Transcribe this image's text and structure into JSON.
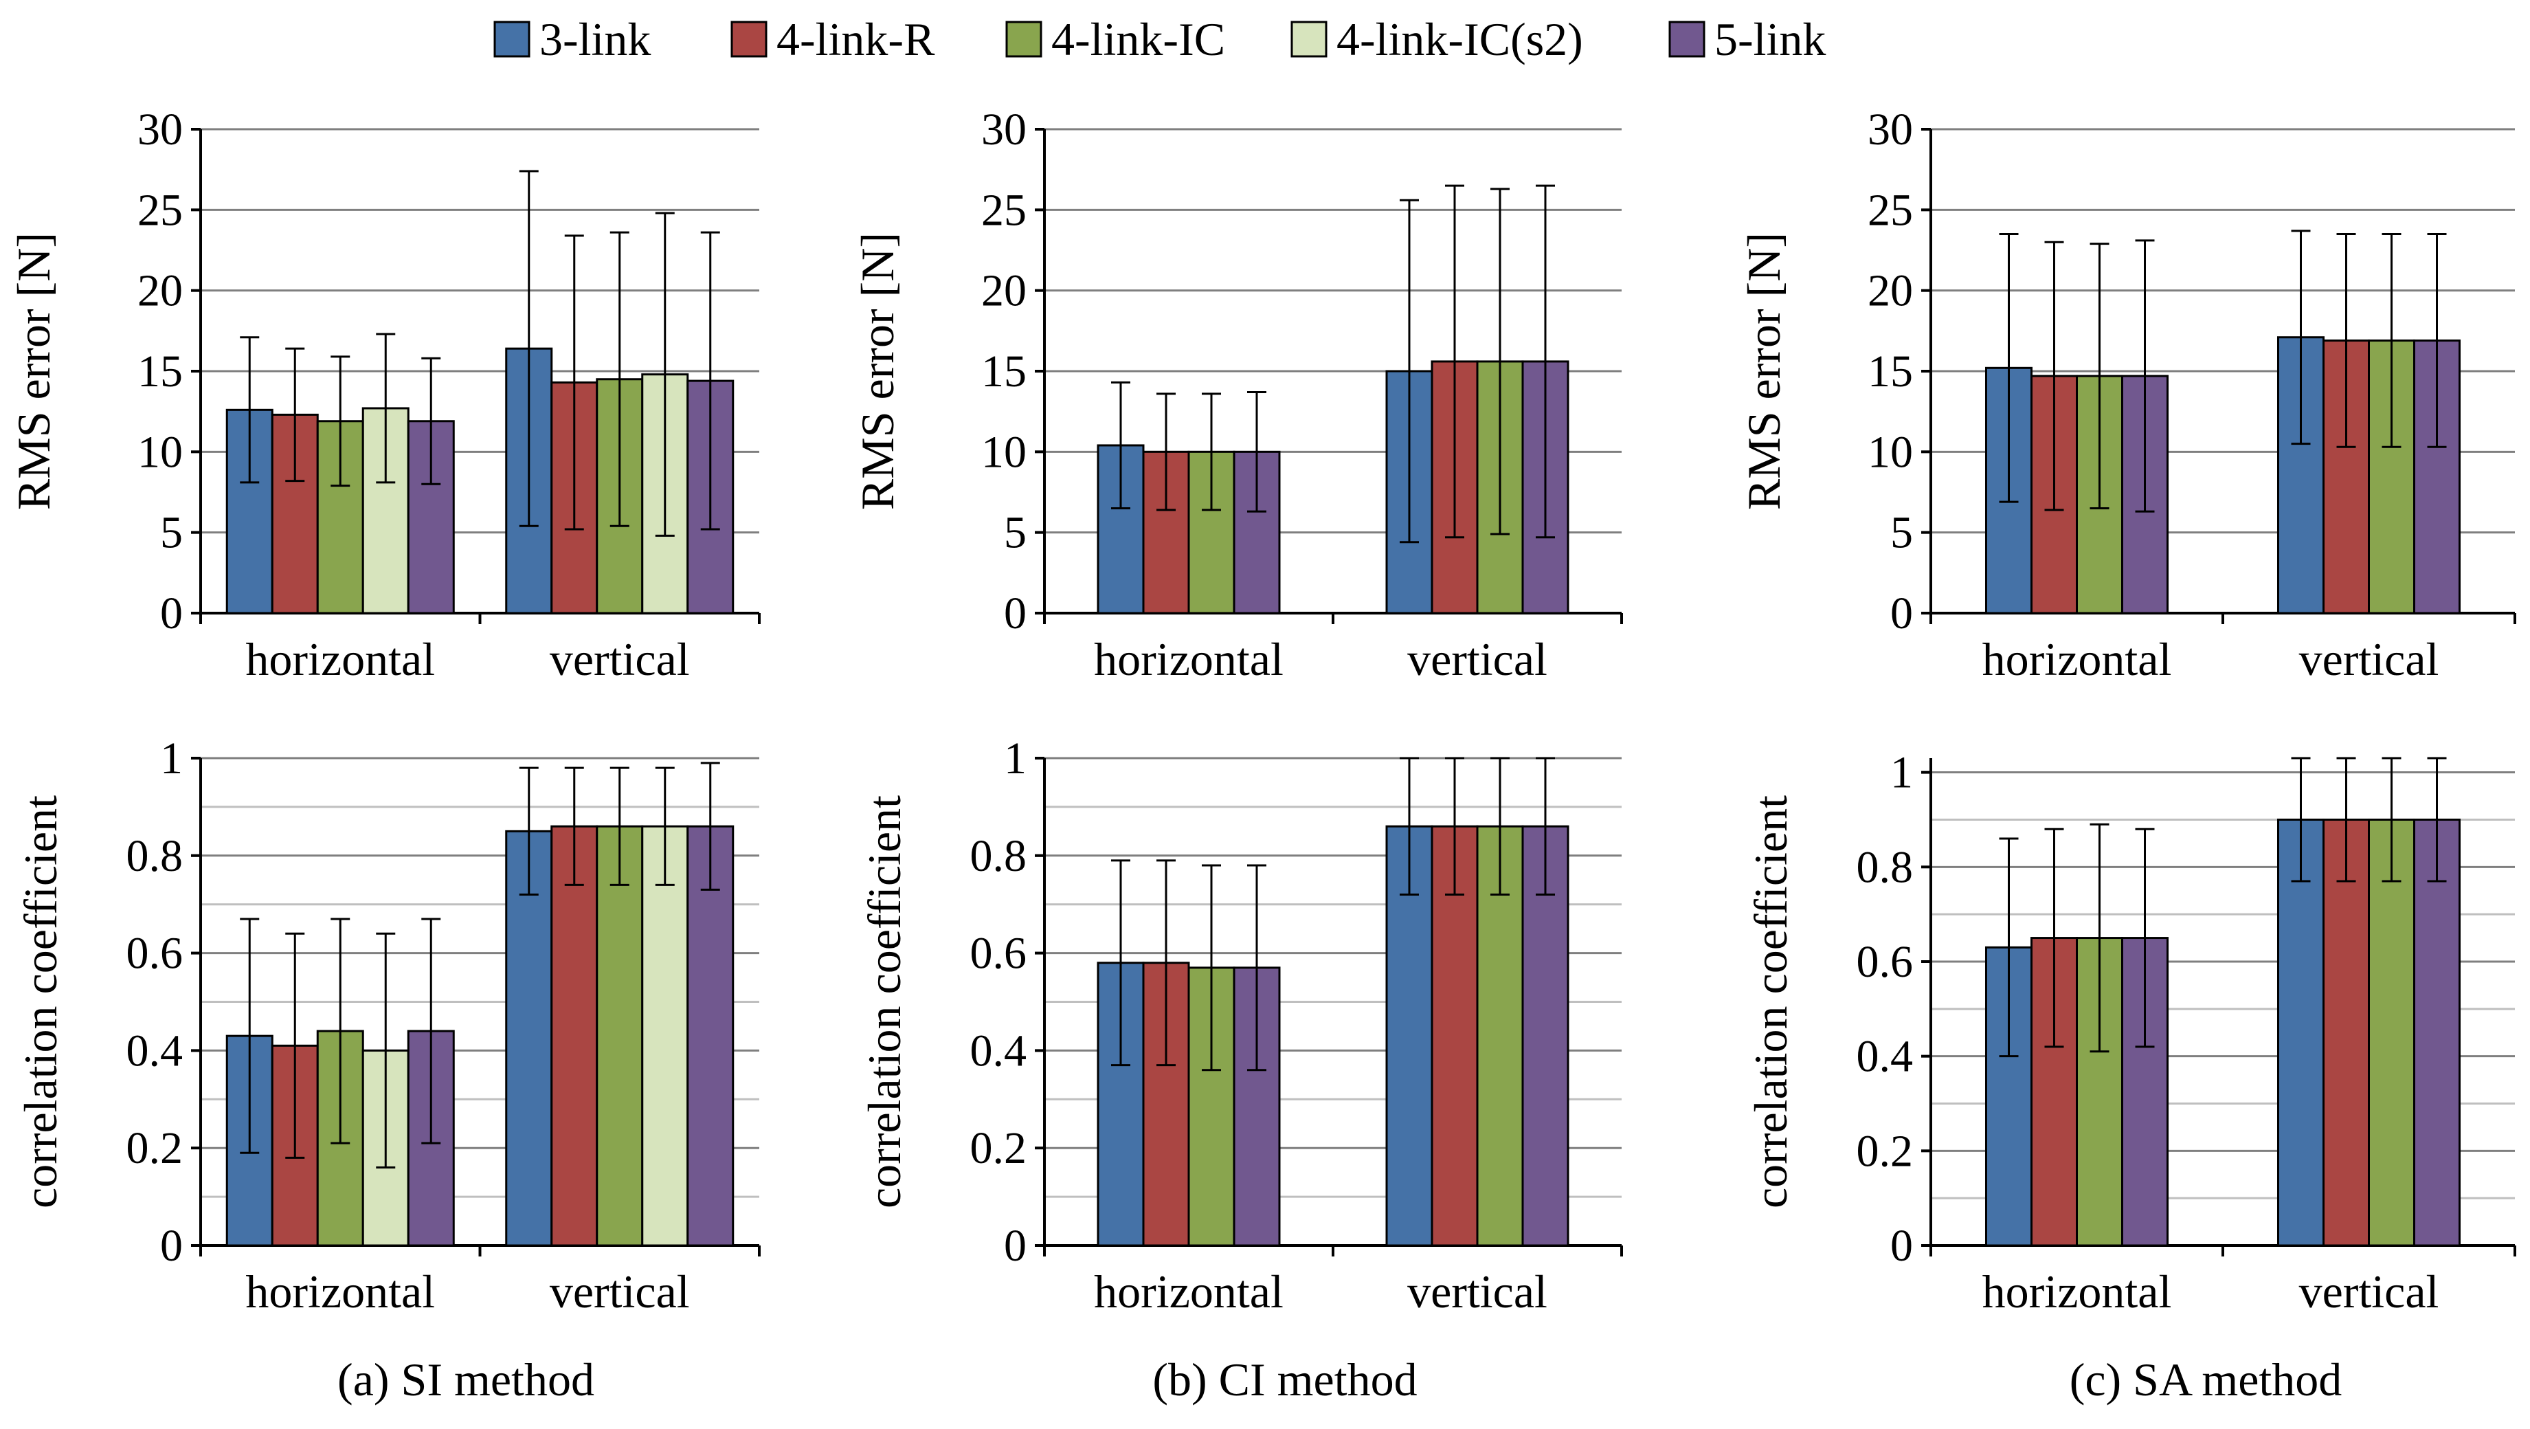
{
  "legend": {
    "items": [
      {
        "label": "3-link",
        "color": "#4572A7"
      },
      {
        "label": "4-link-R",
        "color": "#AA4643"
      },
      {
        "label": "4-link-IC",
        "color": "#89A54E"
      },
      {
        "label": "4-link-IC(s2)",
        "color": "#D7E4BD"
      },
      {
        "label": "5-link",
        "color": "#71588F"
      }
    ]
  },
  "chart_data": [
    {
      "type": "bar",
      "panel": "(a) SI method",
      "ylabel": "RMS error [N]",
      "ylim": [
        0,
        30
      ],
      "yticks": [
        0,
        5,
        10,
        15,
        20,
        25,
        30
      ],
      "categories": [
        "horizontal",
        "vertical"
      ],
      "series": [
        {
          "name": "3-link",
          "values": [
            12.6,
            16.4
          ],
          "errors": [
            4.5,
            11.0
          ]
        },
        {
          "name": "4-link-R",
          "values": [
            12.3,
            14.3
          ],
          "errors": [
            4.1,
            9.1
          ]
        },
        {
          "name": "4-link-IC",
          "values": [
            11.9,
            14.5
          ],
          "errors": [
            4.0,
            9.1
          ]
        },
        {
          "name": "4-link-IC(s2)",
          "values": [
            12.7,
            14.8
          ],
          "errors": [
            4.6,
            10.0
          ]
        },
        {
          "name": "5-link",
          "values": [
            11.9,
            14.4
          ],
          "errors": [
            3.9,
            9.2
          ]
        }
      ]
    },
    {
      "type": "bar",
      "panel": "(b) CI method",
      "ylabel": "RMS error [N]",
      "ylim": [
        0,
        30
      ],
      "yticks": [
        0,
        5,
        10,
        15,
        20,
        25,
        30
      ],
      "categories": [
        "horizontal",
        "vertical"
      ],
      "series": [
        {
          "name": "3-link",
          "values": [
            10.4,
            15.0
          ],
          "errors": [
            3.9,
            10.6
          ]
        },
        {
          "name": "4-link-R",
          "values": [
            10.0,
            15.6
          ],
          "errors": [
            3.6,
            10.9
          ]
        },
        {
          "name": "4-link-IC",
          "values": [
            10.0,
            15.6
          ],
          "errors": [
            3.6,
            10.7
          ]
        },
        {
          "name": "5-link",
          "values": [
            10.0,
            15.6
          ],
          "errors": [
            3.7,
            10.9
          ]
        }
      ]
    },
    {
      "type": "bar",
      "panel": "(c) SA method",
      "ylabel": "RMS error [N]",
      "ylim": [
        0,
        30
      ],
      "yticks": [
        0,
        5,
        10,
        15,
        20,
        25,
        30
      ],
      "categories": [
        "horizontal",
        "vertical"
      ],
      "series": [
        {
          "name": "3-link",
          "values": [
            15.2,
            17.1
          ],
          "errors": [
            8.3,
            6.6
          ]
        },
        {
          "name": "4-link-R",
          "values": [
            14.7,
            16.9
          ],
          "errors": [
            8.3,
            6.6
          ]
        },
        {
          "name": "4-link-IC",
          "values": [
            14.7,
            16.9
          ],
          "errors": [
            8.2,
            6.6
          ]
        },
        {
          "name": "5-link",
          "values": [
            14.7,
            16.9
          ],
          "errors": [
            8.4,
            6.6
          ]
        }
      ]
    },
    {
      "type": "bar",
      "panel": "(a) SI method",
      "ylabel": "correlation coefficient",
      "ylim": [
        0,
        1
      ],
      "yticks": [
        0,
        0.2,
        0.4,
        0.6,
        0.8,
        1
      ],
      "categories": [
        "horizontal",
        "vertical"
      ],
      "series": [
        {
          "name": "3-link",
          "values": [
            0.43,
            0.85
          ],
          "errors": [
            0.24,
            0.13
          ]
        },
        {
          "name": "4-link-R",
          "values": [
            0.41,
            0.86
          ],
          "errors": [
            0.23,
            0.12
          ]
        },
        {
          "name": "4-link-IC",
          "values": [
            0.44,
            0.86
          ],
          "errors": [
            0.23,
            0.12
          ]
        },
        {
          "name": "4-link-IC(s2)",
          "values": [
            0.4,
            0.86
          ],
          "errors": [
            0.24,
            0.12
          ]
        },
        {
          "name": "5-link",
          "values": [
            0.44,
            0.86
          ],
          "errors": [
            0.23,
            0.13
          ]
        }
      ]
    },
    {
      "type": "bar",
      "panel": "(b) CI method",
      "ylabel": "correlation coefficient",
      "ylim": [
        0,
        1
      ],
      "yticks": [
        0,
        0.2,
        0.4,
        0.6,
        0.8,
        1
      ],
      "categories": [
        "horizontal",
        "vertical"
      ],
      "series": [
        {
          "name": "3-link",
          "values": [
            0.58,
            0.86
          ],
          "errors": [
            0.21,
            0.14
          ]
        },
        {
          "name": "4-link-R",
          "values": [
            0.58,
            0.86
          ],
          "errors": [
            0.21,
            0.14
          ]
        },
        {
          "name": "4-link-IC",
          "values": [
            0.57,
            0.86
          ],
          "errors": [
            0.21,
            0.14
          ]
        },
        {
          "name": "5-link",
          "values": [
            0.57,
            0.86
          ],
          "errors": [
            0.21,
            0.14
          ]
        }
      ]
    },
    {
      "type": "bar",
      "panel": "(c) SA method",
      "ylabel": "correlation coefficient",
      "ylim": [
        0,
        1.03
      ],
      "yticks": [
        0,
        0.2,
        0.4,
        0.6,
        0.8,
        1
      ],
      "categories": [
        "horizontal",
        "vertical"
      ],
      "series": [
        {
          "name": "3-link",
          "values": [
            0.63,
            0.9
          ],
          "errors": [
            0.23,
            0.13
          ]
        },
        {
          "name": "4-link-R",
          "values": [
            0.65,
            0.9
          ],
          "errors": [
            0.23,
            0.13
          ]
        },
        {
          "name": "4-link-IC",
          "values": [
            0.65,
            0.9
          ],
          "errors": [
            0.24,
            0.13
          ]
        },
        {
          "name": "5-link",
          "values": [
            0.65,
            0.9
          ],
          "errors": [
            0.23,
            0.13
          ]
        }
      ]
    }
  ],
  "captions": [
    "(a) SI method",
    "(b) CI method",
    "(c) SA method"
  ]
}
